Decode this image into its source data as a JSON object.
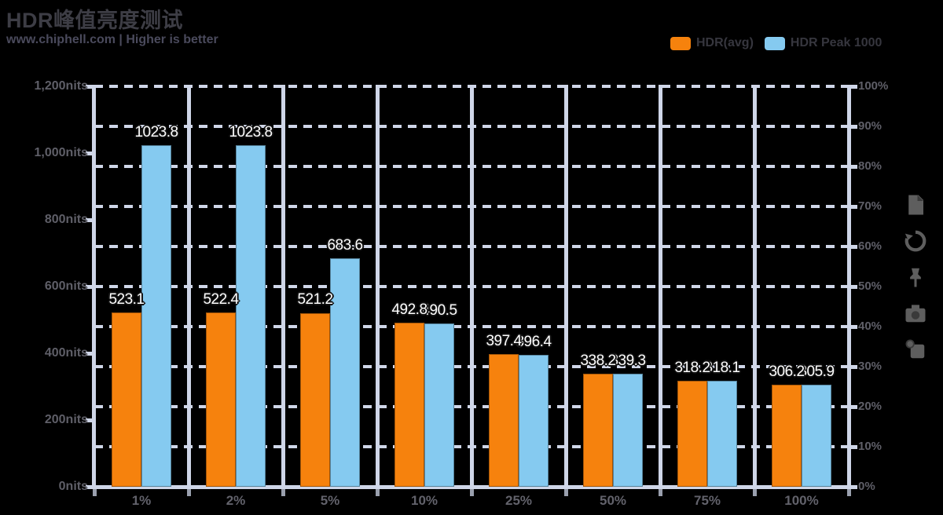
{
  "header": {
    "title": "HDR峰值亮度测试",
    "subtitle": "www.chiphell.com | Higher is better"
  },
  "legend": {
    "items": [
      {
        "label": "HDR(avg)",
        "color": "#f6820d"
      },
      {
        "label": "HDR Peak 1000",
        "color": "#85caf0"
      }
    ]
  },
  "toolbox": {
    "icons": [
      "data-view-icon",
      "restore-icon",
      "pin-icon",
      "camera-icon",
      "copy-icon"
    ]
  },
  "chart_data": {
    "type": "bar",
    "title": "HDR峰值亮度测试",
    "subtitle": "www.chiphell.com | Higher is better",
    "categories": [
      "1%",
      "2%",
      "5%",
      "10%",
      "25%",
      "50%",
      "75%",
      "100%"
    ],
    "series": [
      {
        "name": "HDR(avg)",
        "color": "#f6820d",
        "values": [
          523.1,
          522.4,
          521.2,
          492.8,
          397.4,
          338.2,
          318.2,
          306.2
        ]
      },
      {
        "name": "HDR Peak 1000",
        "color": "#85caf0",
        "values": [
          1023.8,
          1023.8,
          683.6,
          490.5,
          396.4,
          339.3,
          318.1,
          305.9
        ]
      }
    ],
    "xlabel": "",
    "ylabel_left": "nits",
    "ylabel_right": "%",
    "ylim": [
      0,
      1200
    ],
    "left_axis_labels": [
      "1,200nits",
      "1,000nits",
      "800nits",
      "600nits",
      "400nits",
      "200nits",
      "0nits"
    ],
    "right_axis_labels": [
      "100%",
      "90%",
      "80%",
      "70%",
      "60%",
      "50%",
      "40%",
      "30%",
      "20%",
      "10%",
      "0%"
    ],
    "grid": true,
    "legend_position": "top-right",
    "colors": {
      "background": "#000000",
      "grid": "#cfd6e8",
      "axis_text": "#5f5f68",
      "data_label_text": "#ffffff",
      "title_text": "#3d3d45",
      "subtitle_text": "#4a4a5c"
    }
  }
}
